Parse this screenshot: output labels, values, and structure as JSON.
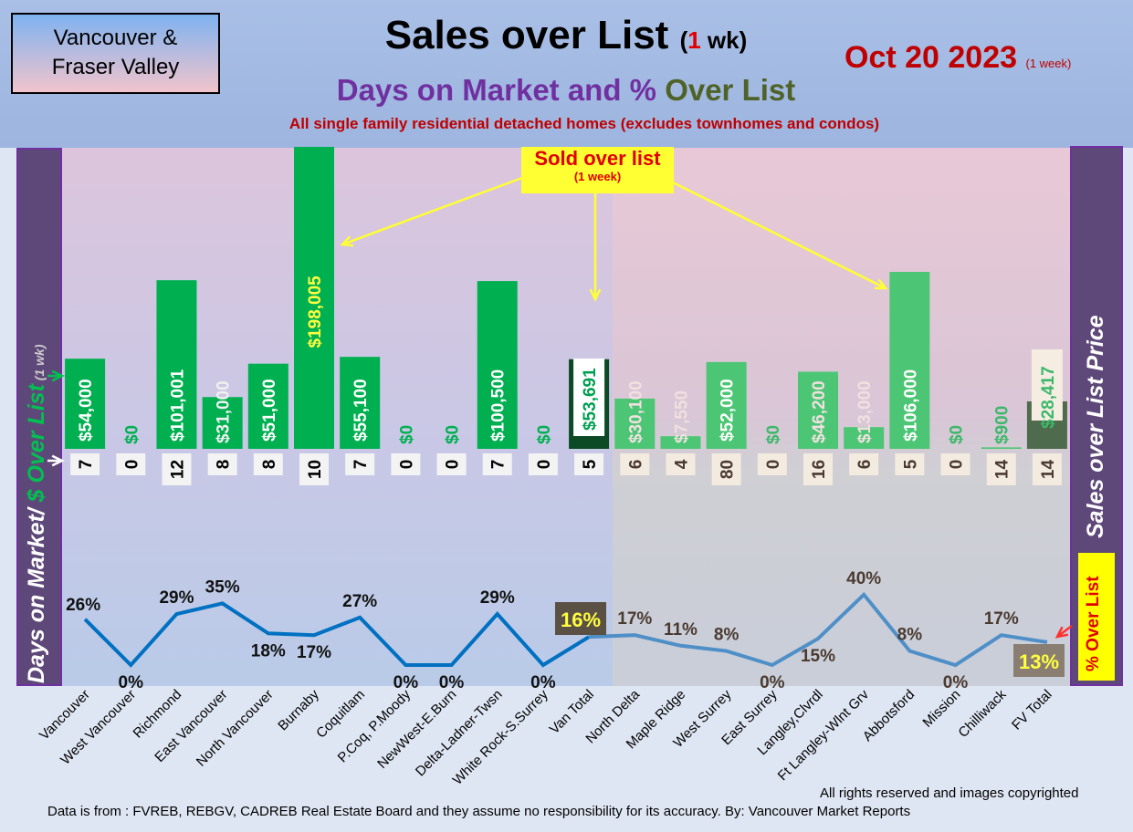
{
  "header": {
    "region_line1": "Vancouver &",
    "region_line2": "Fraser Valley",
    "title": "Sales over List",
    "title_paren_open": "(",
    "title_num": "1",
    "title_paren_rest": " wk)",
    "subtitle_a": "Days on Market and % ",
    "subtitle_b": "Over List",
    "subtitle2": "All single family residential detached homes (excludes townhomes and condos)",
    "date": "Oct 20  2023",
    "date_note": "(1 week)"
  },
  "left_axis": {
    "part1": "Days on Market/ ",
    "part2": "$ Over List",
    "part3": " (1 wk)"
  },
  "right_axis": {
    "label": "Sales over List Price",
    "pct_label": "% Over List"
  },
  "callout": {
    "title": "Sold over list",
    "note": "(1 week)"
  },
  "footer": {
    "copyright": "All rights reserved and  images copyrighted",
    "source": "Data is from : FVREB, REBGV, CADREB Real Estate Board and they assume no responsibility for its accuracy. By: Vancouver Market Reports"
  },
  "colors": {
    "bar_van": "#00b050",
    "bar_fv": "#4cc674",
    "line_van": "#0070c0",
    "line_fv": "#4f8fc8"
  },
  "chart_data": {
    "type": "bar+line",
    "categories": [
      "Vancouver",
      "West Vancouver",
      "Richmond",
      "East Vancouver",
      "North Vancouver",
      "Burnaby",
      "Coquitlam",
      "P.Coq, P.Moody",
      "NewWest-E.Burn",
      "Delta-Ladner-Twsn",
      "White Rock-S.Surrey",
      "Van Total",
      "North Delta",
      "Maple Ridge",
      "West Surrey",
      "East Surrey",
      "Langley,Clvrdl",
      "Ft Langley-Wlnt Grv",
      "Abbotsford",
      "Mission",
      "Chilliwack",
      "FV Total"
    ],
    "series": [
      {
        "name": "$ Over List",
        "values": [
          54000,
          0,
          101001,
          31000,
          51000,
          198005,
          55100,
          0,
          0,
          100500,
          0,
          53691,
          30100,
          7550,
          52000,
          0,
          46200,
          13000,
          106000,
          0,
          900,
          28417
        ],
        "labels": [
          "$54,000",
          "$0",
          "$101,001",
          "$31,000",
          "$51,000",
          "$198,005",
          "$55,100",
          "$0",
          "$0",
          "$100,500",
          "$0",
          "$53,691",
          "$30,100",
          "$7,550",
          "$52,000",
          "$0",
          "$46,200",
          "$13,000",
          "$106,000",
          "$0",
          "$900",
          "$28,417"
        ]
      },
      {
        "name": "Days on Market",
        "values": [
          7,
          0,
          12,
          8,
          8,
          10,
          7,
          0,
          0,
          7,
          0,
          5,
          6,
          4,
          80,
          0,
          16,
          6,
          5,
          0,
          14,
          14
        ]
      },
      {
        "name": "% Over List",
        "values": [
          26,
          0,
          29,
          35,
          18,
          17,
          27,
          0,
          0,
          29,
          0,
          16,
          17,
          11,
          8,
          0,
          15,
          40,
          8,
          0,
          17,
          13
        ]
      }
    ]
  }
}
